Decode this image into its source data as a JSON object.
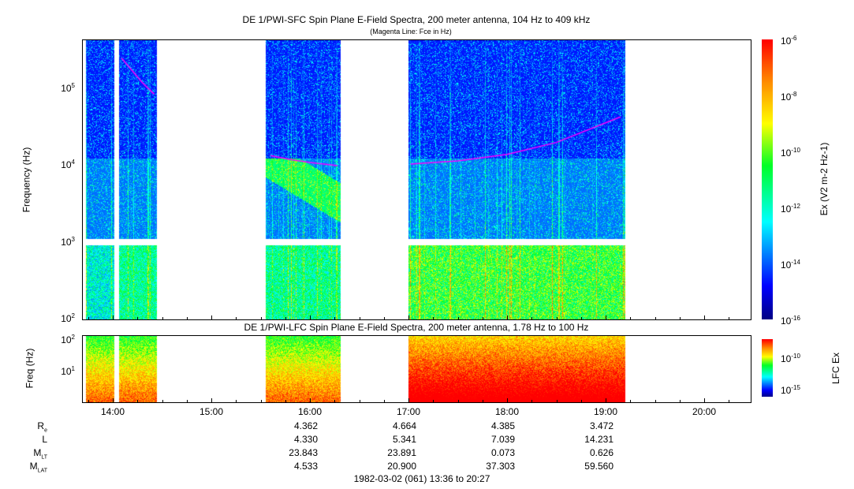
{
  "chart_data": [
    {
      "type": "heatmap",
      "title": "DE 1/PWI-SFC  Spin Plane E-Field Spectra, 200 meter antenna, 104 Hz to 409 kHz",
      "subtitle": "(Magenta Line: Fce in Hz)",
      "ylabel": "Frequency (Hz)",
      "yscale": "log",
      "ylim": [
        100,
        436000
      ],
      "yticks": [
        {
          "v": 100,
          "label": "10",
          "exp": "2"
        },
        {
          "v": 1000,
          "label": "10",
          "exp": "3"
        },
        {
          "v": 10000,
          "label": "10",
          "exp": "4"
        },
        {
          "v": 100000,
          "label": "10",
          "exp": "5"
        }
      ],
      "xlim_hours": [
        13.69,
        20.45
      ],
      "data_segments_hours": [
        [
          13.73,
          14.02
        ],
        [
          14.06,
          14.45
        ],
        [
          15.55,
          16.31
        ],
        [
          17.0,
          19.2
        ]
      ],
      "fce_lines": [
        {
          "t": [
            14.09,
            14.2,
            14.3,
            14.42
          ],
          "f": [
            250000,
            170000,
            120000,
            85000
          ]
        },
        {
          "t": [
            15.6,
            15.8,
            16.0,
            16.28
          ],
          "f": [
            13500,
            12000,
            11000,
            10000
          ]
        },
        {
          "t": [
            17.02,
            17.5,
            18.0,
            18.5,
            19.15
          ],
          "f": [
            10500,
            11500,
            14000,
            20000,
            43000
          ]
        }
      ],
      "colorbar": {
        "label": "Ex (V",
        "label_full": "Ex (V2 m-2 Hz-1)",
        "range_exp": [
          -16,
          -6
        ],
        "ticks": [
          {
            "label": "10",
            "exp": "-6"
          },
          {
            "label": "10",
            "exp": "-8"
          },
          {
            "label": "10",
            "exp": "-10"
          },
          {
            "label": "10",
            "exp": "-12"
          },
          {
            "label": "10",
            "exp": "-14"
          },
          {
            "label": "10",
            "exp": "-16"
          }
        ]
      }
    },
    {
      "type": "heatmap",
      "title": "DE 1/PWI-LFC  Spin Plane E-Field Spectra, 200 meter antenna, 1.78 Hz to 100 Hz",
      "ylabel": "Freq (Hz)",
      "yscale": "log",
      "ylim": [
        1.78,
        100
      ],
      "yticks": [
        {
          "label": "10",
          "exp": "2"
        },
        {
          "label": "10",
          "exp": "1"
        }
      ],
      "colorbar": {
        "label": "LFC Ex",
        "ticks": [
          {
            "label": "10",
            "exp": "-10"
          },
          {
            "label": "10",
            "exp": "-15"
          }
        ]
      }
    }
  ],
  "x_axis": {
    "ticks": [
      "14:00",
      "15:00",
      "16:00",
      "17:00",
      "18:00",
      "19:00",
      "20:00"
    ],
    "caption": "1982-03-02 (061) 13:36 to 20:27"
  },
  "ephemeris": {
    "rows": [
      {
        "label": "R",
        "sub": "e",
        "values": [
          "4.362",
          "4.664",
          "4.385",
          "3.472"
        ]
      },
      {
        "label": "L",
        "sub": "",
        "values": [
          "4.330",
          "5.341",
          "7.039",
          "14.231"
        ]
      },
      {
        "label": "M",
        "sub": "LT",
        "values": [
          "23.843",
          "23.891",
          "0.073",
          "0.626"
        ]
      },
      {
        "label": "M",
        "sub": "LAT",
        "values": [
          "4.533",
          "20.900",
          "37.303",
          "59.560"
        ]
      }
    ]
  },
  "colors": {
    "fce": "#ff00ff"
  }
}
